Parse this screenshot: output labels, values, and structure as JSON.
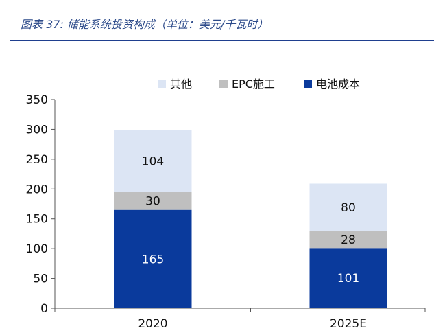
{
  "title": "图表 37: 储能系统投资构成（单位：美元/千瓦时）",
  "chart_data": {
    "type": "bar",
    "stacked": true,
    "categories": [
      "2020",
      "2025E"
    ],
    "series": [
      {
        "name": "电池成本",
        "values": [
          165,
          101
        ],
        "color": "#0a3a9c"
      },
      {
        "name": "EPC施工",
        "values": [
          30,
          28
        ],
        "color": "#bfbfbf"
      },
      {
        "name": "其他",
        "values": [
          104,
          80
        ],
        "color": "#dce5f4"
      }
    ],
    "legend_order": [
      "其他",
      "EPC施工",
      "电池成本"
    ],
    "ylim": [
      0,
      350
    ],
    "yticks": [
      0,
      50,
      100,
      150,
      200,
      250,
      300,
      350
    ],
    "grid": false,
    "legend": "top"
  }
}
